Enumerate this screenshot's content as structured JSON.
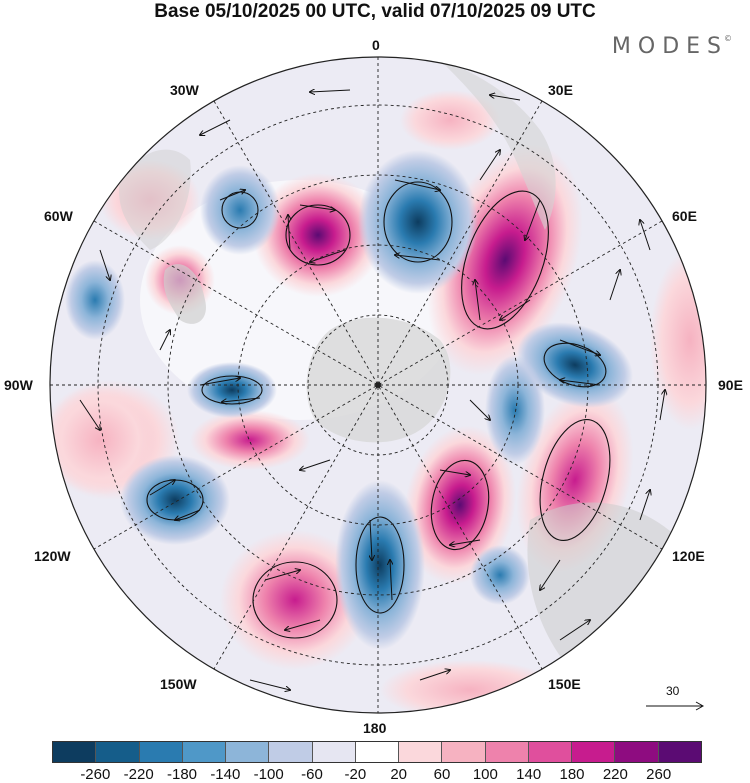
{
  "title": "Base 05/10/2025 00 UTC, valid 07/10/2025 09 UTC",
  "brand": "MODES",
  "brand_mark": "©",
  "longitude_labels": {
    "top": "0",
    "top_right": "30E",
    "right_upper": "60E",
    "right": "90E",
    "right_lower": "120E",
    "bottom_right": "150E",
    "bottom": "180",
    "bottom_left": "150W",
    "left_lower": "120W",
    "left": "90W",
    "left_upper": "60W",
    "top_left": "30W"
  },
  "wind_scale": {
    "label": "30"
  },
  "colorbar": {
    "ticks": [
      "-260",
      "-220",
      "-180",
      "-140",
      "-100",
      "-60",
      "-20",
      "20",
      "60",
      "100",
      "140",
      "180",
      "220",
      "260"
    ],
    "colors": [
      "#0d3c5f",
      "#155d8a",
      "#2a7bb0",
      "#4f98c8",
      "#8db5d9",
      "#c0cce6",
      "#e6e6f2",
      "#ffffff",
      "#fbd8dc",
      "#f6b2c1",
      "#ee82ac",
      "#e04f9d",
      "#c71c8e",
      "#8e0c80",
      "#5b0b73"
    ]
  }
}
